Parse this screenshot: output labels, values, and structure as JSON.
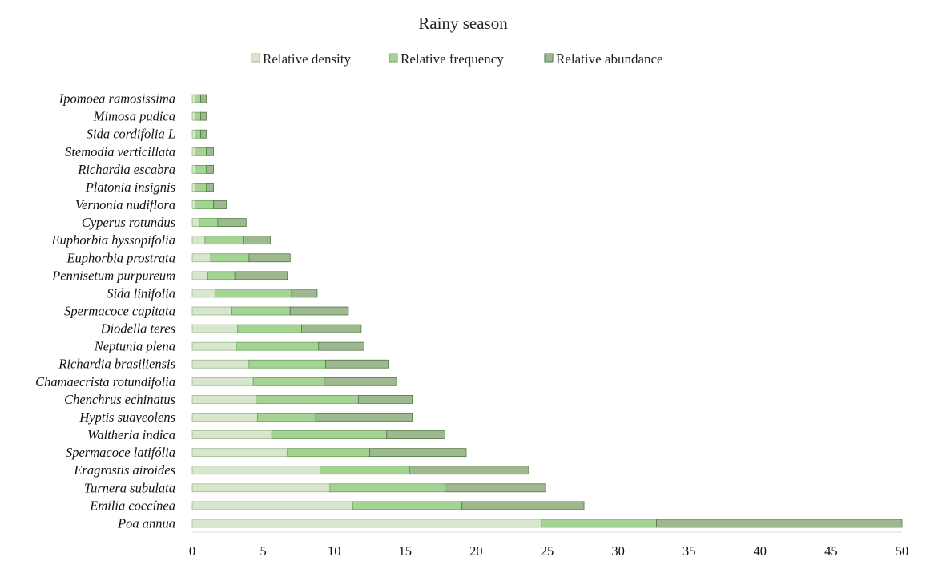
{
  "chart_data": {
    "type": "bar",
    "orientation": "horizontal",
    "stacked": true,
    "title": "Rainy season",
    "xlabel": "",
    "ylabel": "",
    "xlim": [
      0,
      50
    ],
    "xticks": [
      "0",
      "5",
      "10",
      "15",
      "20",
      "25",
      "30",
      "35",
      "40",
      "45",
      "50"
    ],
    "grid": false,
    "legend_position": "top",
    "categories": [
      "Ipomoea ramosissima",
      "Mimosa pudica",
      "Sida cordifolia L",
      "Stemodia verticillata",
      "Richardia escabra",
      "Platonia insignis",
      "Vernonia nudiflora",
      "Cyperus rotundus",
      "Euphorbia hyssopifolia",
      "Euphorbia prostrata",
      "Pennisetum purpureum",
      "Sida linifolia",
      "Spermacoce capitata",
      "Diodella teres",
      "Neptunia plena",
      "Richardia brasiliensis",
      "Chamaecrista rotundifolia",
      "Chenchrus echinatus",
      "Hyptis suaveolens",
      "Waltheria indica",
      "Spermacoce latifólia",
      "Eragrostis airoides",
      "Turnera subulata",
      "Emilia coccínea",
      "Poa annua"
    ],
    "series": [
      {
        "name": "Relative density",
        "color": "#d7e6cc",
        "values": [
          0.2,
          0.2,
          0.2,
          0.2,
          0.2,
          0.2,
          0.2,
          0.5,
          0.9,
          1.3,
          1.1,
          1.6,
          2.8,
          3.2,
          3.1,
          4.0,
          4.3,
          4.5,
          4.6,
          5.6,
          6.7,
          9.0,
          9.7,
          11.3,
          24.6
        ]
      },
      {
        "name": "Relative frequency",
        "color": "#a4d494",
        "values": [
          0.4,
          0.4,
          0.4,
          0.8,
          0.8,
          0.8,
          1.3,
          1.3,
          2.7,
          2.7,
          1.9,
          5.4,
          4.1,
          4.5,
          5.8,
          5.4,
          5.0,
          7.2,
          4.1,
          8.1,
          5.8,
          6.3,
          8.1,
          7.7,
          8.1
        ]
      },
      {
        "name": "Relative abundance",
        "color": "#9eb98f",
        "values": [
          0.4,
          0.4,
          0.4,
          0.5,
          0.5,
          0.5,
          0.9,
          2.0,
          1.9,
          2.9,
          3.7,
          1.8,
          4.1,
          4.2,
          3.2,
          4.4,
          5.1,
          3.8,
          6.8,
          4.1,
          6.8,
          8.4,
          7.1,
          8.6,
          17.3
        ]
      }
    ]
  }
}
